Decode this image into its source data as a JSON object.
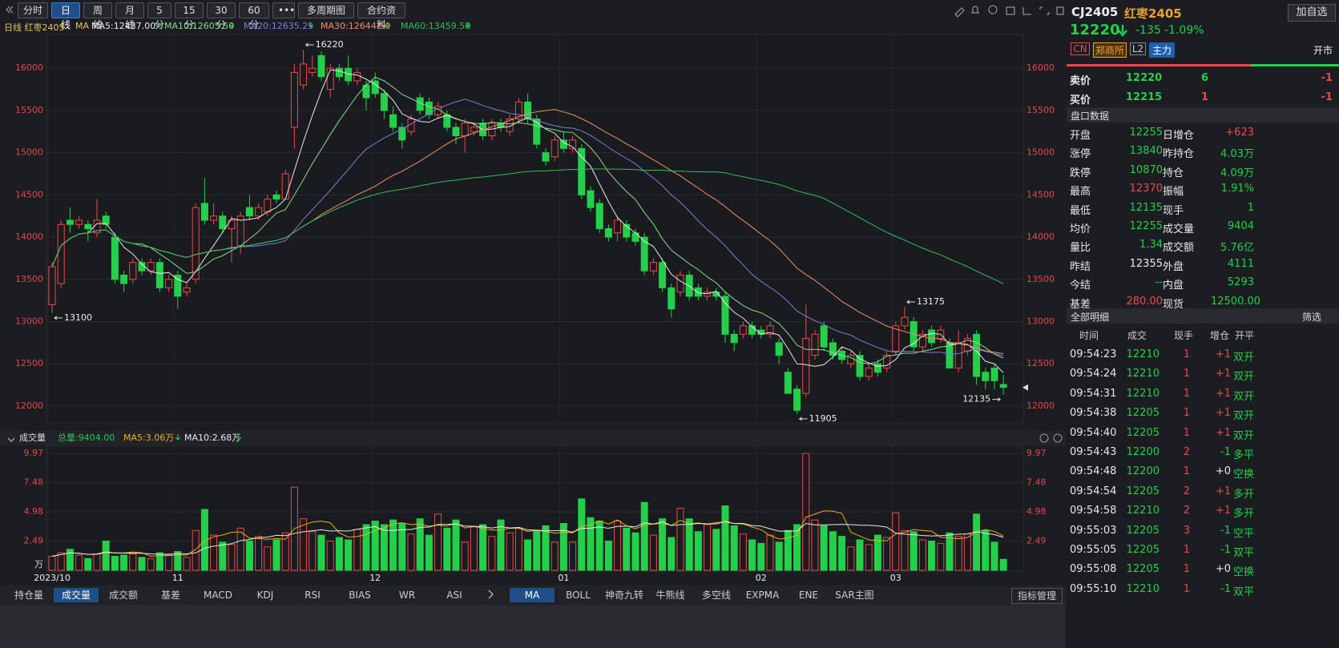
{
  "toolbar": {
    "tabs": [
      "分时",
      "日线",
      "周线",
      "月线",
      "5分",
      "15分",
      "30分",
      "60分",
      "•••",
      "多周期图",
      "合约资料"
    ]
  },
  "legend": {
    "title": "日线 红枣2405",
    "ma": "MA"
  },
  "chart_data": [
    {
      "type": "candlestick",
      "ylim": [
        11800,
        16400
      ],
      "yticks": [
        12000,
        12500,
        13000,
        13500,
        14000,
        14500,
        15000,
        15500,
        16000
      ],
      "grid": true,
      "up_color": "#f04848",
      "down_color": "#22d04a",
      "ma_series": [
        {
          "name": "MA5:12437.00",
          "color": "#e8e8e8"
        },
        {
          "name": "MA10:12605.50",
          "color": "#7fe08a"
        },
        {
          "name": "MA20:12635.25",
          "color": "#7b7fe0"
        },
        {
          "name": "MA30:12644.50",
          "color": "#f0906a"
        },
        {
          "name": "MA60:13459.58",
          "color": "#2fbf5a"
        }
      ],
      "annotations": [
        16220,
        13100,
        11905,
        13175,
        12135
      ],
      "open": [
        13200,
        13450,
        14200,
        14150,
        14150,
        14050,
        14250,
        14000,
        13550,
        13500,
        13700,
        13600,
        13700,
        13400,
        13550,
        13350,
        13500,
        14400,
        14200,
        14250,
        14100,
        13900,
        14350,
        14250,
        14300,
        14500,
        14450,
        15300,
        15800,
        15950,
        16150,
        15750,
        16000,
        16000,
        15850,
        15800,
        15850,
        15700,
        15450,
        15300,
        15250,
        15650,
        15600,
        15450,
        15450,
        15300,
        15200,
        15250,
        15350,
        15200,
        15350,
        15250,
        15400,
        15600,
        15400,
        15000,
        14950,
        15150,
        15050,
        15050,
        14550,
        14400,
        14100,
        14050,
        14150,
        14050,
        14000,
        13600,
        13700,
        13400,
        13350,
        13550,
        13400,
        13300,
        13350,
        13300,
        12850,
        12850,
        12950,
        12900,
        12850,
        12750,
        12400,
        12200,
        12150,
        12600,
        12950,
        12750,
        12650,
        12500,
        12600,
        12350,
        12500,
        12450,
        12650,
        12950,
        13000,
        12700,
        12900,
        12800,
        12750,
        12450,
        12650,
        12850,
        12400,
        12450,
        12255
      ],
      "high": [
        13700,
        14200,
        14350,
        14250,
        14200,
        14450,
        14300,
        14050,
        13600,
        13750,
        13750,
        13750,
        13750,
        13550,
        13600,
        13450,
        14400,
        14700,
        14400,
        14300,
        14250,
        14300,
        14500,
        14400,
        14500,
        14550,
        14800,
        16050,
        16220,
        16150,
        16200,
        16050,
        16050,
        16150,
        16000,
        15850,
        15950,
        15750,
        15550,
        15350,
        15450,
        15700,
        15650,
        15600,
        15500,
        15350,
        15400,
        15350,
        15400,
        15400,
        15400,
        15450,
        15650,
        15700,
        15450,
        15050,
        15200,
        15250,
        15200,
        15100,
        14600,
        14450,
        14150,
        14250,
        14200,
        14100,
        14050,
        13750,
        13750,
        13450,
        13600,
        13600,
        13450,
        13400,
        13400,
        13350,
        12900,
        13000,
        13000,
        12950,
        13000,
        12800,
        12450,
        12250,
        13200,
        12900,
        13000,
        12800,
        12700,
        12650,
        12650,
        12500,
        12550,
        12650,
        13000,
        13175,
        13050,
        12900,
        12950,
        12950,
        12800,
        12900,
        12850,
        12900,
        12450,
        12500,
        12370
      ],
      "low": [
        13100,
        13400,
        14050,
        14100,
        13950,
        14000,
        14100,
        13450,
        13350,
        13450,
        13550,
        13550,
        13350,
        13350,
        13150,
        13300,
        13450,
        14150,
        14150,
        14050,
        13700,
        13800,
        14200,
        14200,
        14250,
        14400,
        14450,
        15050,
        15750,
        15900,
        15850,
        15650,
        15850,
        15800,
        15800,
        15500,
        15650,
        15400,
        15250,
        15050,
        15200,
        15450,
        15400,
        15400,
        15250,
        15100,
        15000,
        15200,
        15150,
        15150,
        15250,
        15200,
        15350,
        15350,
        15050,
        14850,
        14900,
        15000,
        15000,
        14450,
        14300,
        14050,
        13950,
        13950,
        13950,
        13900,
        13550,
        13550,
        13350,
        13050,
        13300,
        13250,
        13250,
        13250,
        13250,
        12750,
        12650,
        12800,
        12800,
        12800,
        12800,
        12500,
        12150,
        11905,
        12100,
        12550,
        12650,
        12550,
        12500,
        12450,
        12300,
        12300,
        12350,
        12400,
        12600,
        12900,
        12650,
        12650,
        12700,
        12750,
        12450,
        12400,
        12600,
        12250,
        12200,
        12200,
        12135
      ],
      "close": [
        13650,
        14150,
        14150,
        14200,
        14100,
        14200,
        14150,
        13500,
        13450,
        13700,
        13600,
        13700,
        13400,
        13500,
        13300,
        13400,
        14350,
        14200,
        14250,
        14100,
        14200,
        14250,
        14250,
        14350,
        14450,
        14450,
        14750,
        15950,
        16050,
        16000,
        15900,
        16000,
        15900,
        15850,
        15950,
        15650,
        15700,
        15500,
        15300,
        15150,
        15400,
        15500,
        15450,
        15550,
        15300,
        15200,
        15350,
        15300,
        15200,
        15350,
        15300,
        15400,
        15600,
        15400,
        15100,
        14900,
        15150,
        15050,
        15150,
        14500,
        14350,
        14100,
        14000,
        14200,
        14000,
        13950,
        13600,
        13700,
        13400,
        13150,
        13550,
        13300,
        13300,
        13350,
        13300,
        12850,
        12750,
        12950,
        12850,
        12850,
        12950,
        12600,
        12150,
        11950,
        12800,
        12850,
        12700,
        12600,
        12550,
        12600,
        12350,
        12450,
        12400,
        12600,
        12950,
        13050,
        12700,
        12850,
        12750,
        12900,
        12450,
        12750,
        12800,
        12350,
        12300,
        12300,
        12220
      ]
    },
    {
      "type": "bar",
      "title": "成交量",
      "total": "总量:9404.00",
      "ma_series": [
        {
          "name": "MA5:3.06万",
          "color": "#e8b020"
        },
        {
          "name": "MA10:2.68万",
          "color": "#e8e8e8"
        }
      ],
      "ylim": [
        0,
        10.6
      ],
      "yticks": [
        2.49,
        4.98,
        7.48,
        9.97
      ],
      "unit": "万",
      "categories": [
        "2023/10",
        null,
        null,
        null,
        null,
        null,
        null,
        null,
        null,
        null,
        null,
        null,
        null,
        null,
        "11",
        null,
        null,
        null,
        null,
        null,
        null,
        null,
        null,
        null,
        null,
        null,
        null,
        null,
        null,
        null,
        null,
        null,
        null,
        null,
        null,
        null,
        "12",
        null,
        null,
        null,
        null,
        null,
        null,
        null,
        null,
        null,
        null,
        null,
        null,
        null,
        null,
        null,
        null,
        null,
        null,
        null,
        null,
        "01",
        null,
        null,
        null,
        null,
        null,
        null,
        null,
        null,
        null,
        null,
        null,
        null,
        null,
        null,
        null,
        null,
        null,
        null,
        null,
        null,
        null,
        "02",
        null,
        null,
        null,
        null,
        null,
        null,
        null,
        null,
        null,
        null,
        null,
        null,
        null,
        null,
        "03",
        null,
        null,
        null,
        null,
        null,
        null,
        null,
        null,
        null,
        null,
        null,
        null
      ],
      "values": [
        1.2,
        1.5,
        1.8,
        1.3,
        1.0,
        1.4,
        2.5,
        1.2,
        1.3,
        1.4,
        1.1,
        1.0,
        1.5,
        1.3,
        1.6,
        1.1,
        3.4,
        5.2,
        3.0,
        2.4,
        2.2,
        3.6,
        2.5,
        2.9,
        2.0,
        2.6,
        3.2,
        7.1,
        4.4,
        3.3,
        3.0,
        2.5,
        2.8,
        2.6,
        3.5,
        3.9,
        4.2,
        3.9,
        4.3,
        4.0,
        3.1,
        4.4,
        3.0,
        4.8,
        3.6,
        4.3,
        2.4,
        3.7,
        3.9,
        2.9,
        4.3,
        3.2,
        3.6,
        2.6,
        3.4,
        3.8,
        2.4,
        4.0,
        2.4,
        6.1,
        4.5,
        4.2,
        2.5,
        4.2,
        3.6,
        3.2,
        5.8,
        3.0,
        4.4,
        2.8,
        5.3,
        4.4,
        3.3,
        3.9,
        3.5,
        5.5,
        3.8,
        3.1,
        2.6,
        2.3,
        3.0,
        2.4,
        3.4,
        3.9,
        9.97,
        4.3,
        3.8,
        3.3,
        2.9,
        2.0,
        2.6,
        2.2,
        3.0,
        2.8,
        4.9,
        3.4,
        3.3,
        2.6,
        2.5,
        2.3,
        3.2,
        2.9,
        3.1,
        4.8,
        3.4,
        2.4,
        0.94
      ]
    }
  ],
  "indicator_tabs": {
    "left": [
      "持仓量",
      "成交量",
      "成交额",
      "基差",
      "MACD",
      "KDJ",
      "RSI",
      "BIAS",
      "WR",
      "ASI"
    ],
    "right": [
      "MA",
      "BOLL",
      "神奇九转",
      "牛熊线",
      "多空线",
      "EXPMA",
      "ENE",
      "SAR主图"
    ],
    "manage": "指标管理"
  },
  "quote": {
    "code": "CJ2405",
    "name": "红枣2405",
    "add": "加自选",
    "price": "12220",
    "change": "-135",
    "pct": "-1.09%",
    "tags": [
      "CN",
      "郑商所",
      "L2",
      "主力"
    ],
    "status": "开市"
  },
  "orderbook": [
    [
      "卖价",
      "12220",
      "6",
      "-1"
    ],
    [
      "买价",
      "12215",
      "1",
      "-1"
    ]
  ],
  "stats_title": "盘口数据",
  "stats": [
    [
      "开盘",
      "12255",
      "日增仓",
      "+623"
    ],
    [
      "涨停",
      "13840",
      "昨持仓",
      "4.03万"
    ],
    [
      "跌停",
      "10870",
      "持仓",
      "4.09万"
    ],
    [
      "最高",
      "12370",
      "振幅",
      "1.91%"
    ],
    [
      "最低",
      "12135",
      "现手",
      "1"
    ],
    [
      "均价",
      "12255",
      "成交量",
      "9404"
    ],
    [
      "量比",
      "1.34",
      "成交额",
      "5.76亿"
    ],
    [
      "昨结",
      "12355",
      "外盘",
      "4111"
    ],
    [
      "今结",
      "--",
      "内盘",
      "5293"
    ],
    [
      "基差",
      "280.00",
      "现货",
      "12500.00"
    ]
  ],
  "trades_title": "全部明细",
  "trades_filter": "筛选",
  "trades_header": [
    "时间",
    "成交",
    "现手",
    "增仓",
    "开平"
  ],
  "trades": [
    [
      "09:54:23",
      "12210",
      "1",
      "+1",
      "双开"
    ],
    [
      "09:54:24",
      "12210",
      "1",
      "+1",
      "双开"
    ],
    [
      "09:54:31",
      "12210",
      "1",
      "+1",
      "双开"
    ],
    [
      "09:54:38",
      "12205",
      "1",
      "+1",
      "双开"
    ],
    [
      "09:54:40",
      "12205",
      "1",
      "+1",
      "双开"
    ],
    [
      "09:54:43",
      "12200",
      "2",
      "-1",
      "多平"
    ],
    [
      "09:54:48",
      "12200",
      "1",
      "+0",
      "空换"
    ],
    [
      "09:54:54",
      "12205",
      "2",
      "+1",
      "多开"
    ],
    [
      "09:54:58",
      "12210",
      "2",
      "+1",
      "多开"
    ],
    [
      "09:55:03",
      "12205",
      "3",
      "-1",
      "空平"
    ],
    [
      "09:55:05",
      "12205",
      "1",
      "-1",
      "双平"
    ],
    [
      "09:55:08",
      "12205",
      "1",
      "+0",
      "空换"
    ],
    [
      "09:55:10",
      "12210",
      "1",
      "-1",
      "双平"
    ]
  ]
}
